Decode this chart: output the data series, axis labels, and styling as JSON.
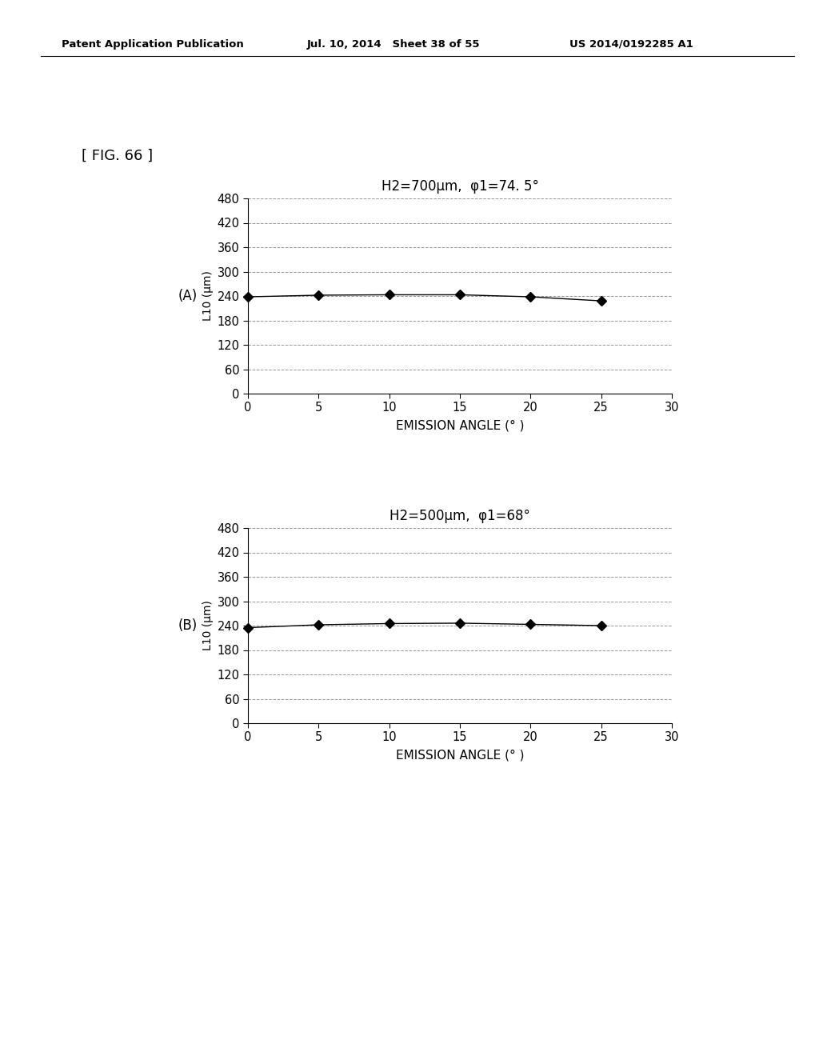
{
  "header_left": "Patent Application Publication",
  "header_mid": "Jul. 10, 2014   Sheet 38 of 55",
  "header_right": "US 2014/0192285 A1",
  "fig_label": "[ FIG. 66 ]",
  "panel_A": {
    "label": "(A)",
    "title": "H2=700μm,  φ1=74. 5°",
    "xlabel": "EMISSION ANGLE (° )",
    "ylabel": "L10 (μm)",
    "x": [
      0,
      5,
      10,
      15,
      20,
      25
    ],
    "y": [
      238,
      242,
      243,
      243,
      238,
      228
    ],
    "xlim": [
      0,
      30
    ],
    "ylim": [
      0,
      480
    ],
    "yticks": [
      0,
      60,
      120,
      180,
      240,
      300,
      360,
      420,
      480
    ],
    "xticks": [
      0,
      5,
      10,
      15,
      20,
      25,
      30
    ]
  },
  "panel_B": {
    "label": "(B)",
    "title": "H2=500μm,  φ1=68°",
    "xlabel": "EMISSION ANGLE (° )",
    "ylabel": "L10 (μm)",
    "x": [
      0,
      5,
      10,
      15,
      20,
      25
    ],
    "y": [
      235,
      242,
      245,
      246,
      243,
      240
    ],
    "xlim": [
      0,
      30
    ],
    "ylim": [
      0,
      480
    ],
    "yticks": [
      0,
      60,
      120,
      180,
      240,
      300,
      360,
      420,
      480
    ],
    "xticks": [
      0,
      5,
      10,
      15,
      20,
      25,
      30
    ]
  },
  "line_color": "#000000",
  "marker": "D",
  "marker_size": 6,
  "grid_color": "#999999",
  "background_color": "#ffffff"
}
